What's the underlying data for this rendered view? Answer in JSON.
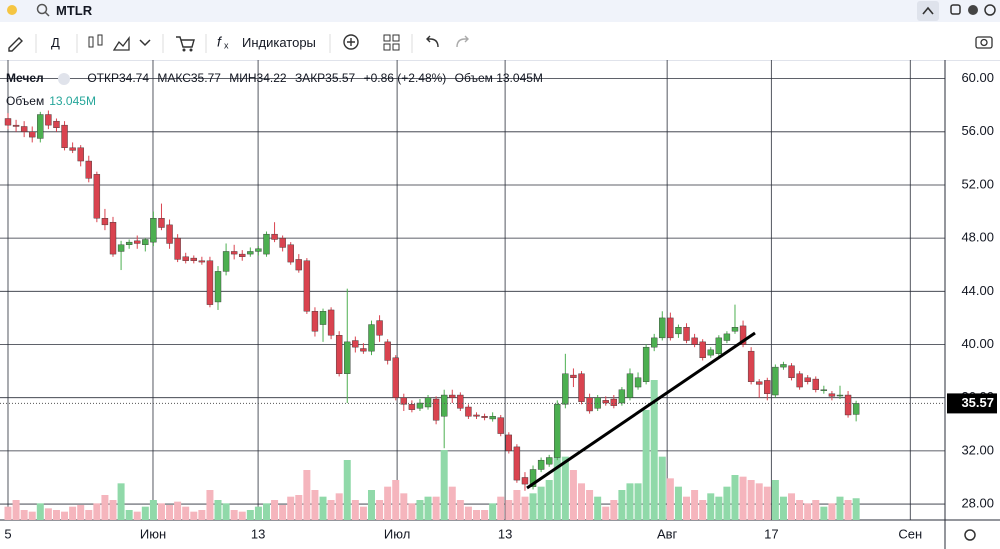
{
  "toolbar": {
    "search": "MTLR",
    "interval": "Д",
    "indicators": "Индикаторы"
  },
  "chart_data": {
    "type": "candlestick",
    "legend": {
      "symbol": "Мечел",
      "open": "ОТКР34.74",
      "high": "МАКС35.77",
      "low": "МИН34.22",
      "close": "ЗАКР35.57",
      "change": "+0.86 (+2.48%)",
      "volume": "Объем 13.045M",
      "volume_title": "Объем",
      "volume_value": "13.045M"
    },
    "up_color": "#4caf50",
    "down_color": "#d9434f",
    "up_volume_color": "#90d9a9",
    "down_volume_color": "#f5b5bd",
    "xlim": [
      -0.99,
      116.0
    ],
    "xticks": [
      {
        "value": 0,
        "label": "5"
      },
      {
        "value": 17.95,
        "label": "Июн"
      },
      {
        "value": 30.96,
        "label": "13"
      },
      {
        "value": 48.17,
        "label": "Июл"
      },
      {
        "value": 61.54,
        "label": "13"
      },
      {
        "value": 81.6,
        "label": "Авг"
      },
      {
        "value": 94.5,
        "label": "17"
      },
      {
        "value": 111.7,
        "label": "Сен"
      }
    ],
    "ylim": [
      26.8,
      61.4
    ],
    "yticks": [
      {
        "value": 28,
        "label": "28.00"
      },
      {
        "value": 32,
        "label": "32.00"
      },
      {
        "value": 36,
        "label": "36.00"
      },
      {
        "value": 40,
        "label": "40.00"
      },
      {
        "value": 44,
        "label": "44.00"
      },
      {
        "value": 48,
        "label": "48.00"
      },
      {
        "value": 52,
        "label": "52.00"
      },
      {
        "value": 56,
        "label": "56.00"
      },
      {
        "value": 60,
        "label": "60.00"
      }
    ],
    "grid": true,
    "volume_max": 90,
    "candles": [
      [
        57.0,
        57.4,
        56.2,
        56.5
      ],
      [
        56.5,
        56.9,
        56.0,
        56.4
      ],
      [
        56.4,
        56.8,
        55.6,
        56.0
      ],
      [
        56.0,
        56.4,
        55.2,
        55.6
      ],
      [
        55.5,
        57.5,
        55.2,
        57.3
      ],
      [
        57.3,
        57.6,
        56.2,
        56.5
      ],
      [
        56.8,
        57.0,
        56.0,
        56.3
      ],
      [
        56.5,
        56.8,
        54.6,
        54.8
      ],
      [
        54.8,
        55.2,
        54.4,
        54.6
      ],
      [
        54.8,
        55.0,
        53.4,
        53.8
      ],
      [
        53.8,
        54.2,
        52.2,
        52.5
      ],
      [
        52.8,
        53.0,
        49.2,
        49.5
      ],
      [
        49.5,
        50.2,
        48.6,
        49.0
      ],
      [
        49.2,
        49.6,
        46.6,
        46.8
      ],
      [
        47.0,
        47.8,
        45.6,
        47.5
      ],
      [
        47.5,
        47.9,
        47.2,
        47.7
      ],
      [
        47.8,
        48.2,
        47.2,
        47.6
      ],
      [
        47.5,
        48.0,
        47.0,
        47.9
      ],
      [
        47.7,
        50.0,
        47.4,
        49.5
      ],
      [
        49.5,
        50.6,
        48.6,
        48.8
      ],
      [
        49.0,
        49.4,
        47.2,
        47.6
      ],
      [
        48.0,
        48.3,
        46.2,
        46.4
      ],
      [
        46.6,
        46.9,
        46.1,
        46.3
      ],
      [
        46.5,
        46.7,
        46.1,
        46.3
      ],
      [
        46.3,
        46.6,
        46.0,
        46.2
      ],
      [
        46.3,
        46.6,
        42.8,
        43.0
      ],
      [
        43.2,
        45.9,
        42.6,
        45.5
      ],
      [
        45.5,
        47.6,
        45.2,
        47.0
      ],
      [
        47.0,
        47.5,
        46.4,
        46.8
      ],
      [
        46.8,
        47.1,
        46.3,
        46.6
      ],
      [
        46.8,
        47.3,
        46.6,
        47.0
      ],
      [
        47.0,
        47.4,
        46.7,
        47.2
      ],
      [
        46.8,
        48.5,
        46.6,
        48.3
      ],
      [
        48.3,
        49.2,
        47.7,
        47.9
      ],
      [
        48.0,
        48.2,
        47.0,
        47.3
      ],
      [
        47.5,
        47.7,
        46.0,
        46.2
      ],
      [
        46.4,
        46.8,
        45.4,
        45.6
      ],
      [
        46.3,
        46.5,
        42.3,
        42.5
      ],
      [
        42.5,
        42.8,
        40.6,
        41.0
      ],
      [
        41.5,
        42.7,
        40.2,
        42.5
      ],
      [
        42.6,
        42.8,
        40.4,
        40.7
      ],
      [
        40.7,
        41.0,
        37.6,
        37.8
      ],
      [
        37.8,
        44.2,
        35.6,
        40.2
      ],
      [
        40.3,
        40.6,
        39.4,
        39.8
      ],
      [
        39.7,
        40.1,
        39.3,
        39.5
      ],
      [
        39.5,
        41.8,
        39.2,
        41.5
      ],
      [
        41.8,
        42.2,
        40.2,
        40.7
      ],
      [
        40.2,
        40.4,
        38.5,
        38.8
      ],
      [
        39.0,
        39.2,
        35.8,
        36.0
      ],
      [
        36.0,
        36.3,
        35.0,
        35.5
      ],
      [
        35.5,
        35.8,
        34.9,
        35.1
      ],
      [
        35.2,
        35.9,
        35.0,
        35.6
      ],
      [
        35.3,
        36.2,
        35.1,
        36.0
      ],
      [
        35.9,
        36.1,
        34.0,
        34.3
      ],
      [
        34.6,
        36.6,
        32.2,
        36.2
      ],
      [
        36.2,
        36.6,
        35.6,
        36.0
      ],
      [
        36.2,
        36.4,
        35.0,
        35.2
      ],
      [
        35.3,
        35.5,
        34.4,
        34.6
      ],
      [
        34.7,
        34.9,
        34.4,
        34.6
      ],
      [
        34.6,
        34.8,
        34.3,
        34.5
      ],
      [
        34.4,
        34.9,
        34.2,
        34.6
      ],
      [
        34.5,
        34.7,
        33.1,
        33.3
      ],
      [
        33.2,
        33.4,
        31.8,
        32.0
      ],
      [
        32.3,
        32.5,
        29.6,
        29.8
      ],
      [
        30.0,
        30.4,
        29.0,
        29.5
      ],
      [
        29.3,
        30.9,
        29.1,
        30.6
      ],
      [
        30.6,
        31.5,
        30.4,
        31.3
      ],
      [
        31.0,
        31.7,
        30.8,
        31.5
      ],
      [
        31.5,
        35.8,
        31.3,
        35.5
      ],
      [
        35.5,
        39.3,
        35.2,
        37.8
      ],
      [
        37.7,
        38.2,
        36.8,
        37.5
      ],
      [
        37.8,
        38.0,
        35.5,
        35.7
      ],
      [
        36.0,
        36.3,
        34.8,
        35.0
      ],
      [
        35.2,
        36.2,
        35.0,
        36.0
      ],
      [
        35.8,
        36.1,
        35.4,
        35.6
      ],
      [
        35.9,
        36.2,
        35.2,
        35.4
      ],
      [
        35.6,
        36.8,
        35.4,
        36.6
      ],
      [
        36.0,
        38.2,
        35.8,
        37.8
      ],
      [
        36.8,
        37.9,
        36.6,
        37.5
      ],
      [
        37.2,
        40.0,
        37.0,
        39.8
      ],
      [
        39.8,
        40.8,
        39.5,
        40.5
      ],
      [
        40.5,
        42.5,
        40.3,
        42.0
      ],
      [
        42.0,
        42.4,
        40.3,
        40.5
      ],
      [
        40.8,
        41.5,
        40.5,
        41.3
      ],
      [
        41.3,
        41.6,
        40.1,
        40.3
      ],
      [
        40.5,
        40.8,
        39.8,
        40.0
      ],
      [
        40.2,
        40.4,
        38.8,
        39.0
      ],
      [
        39.2,
        39.8,
        39.0,
        39.6
      ],
      [
        39.3,
        40.7,
        39.1,
        40.5
      ],
      [
        40.3,
        41.0,
        40.1,
        40.8
      ],
      [
        41.0,
        43.0,
        40.8,
        41.3
      ],
      [
        41.4,
        41.8,
        39.8,
        40.0
      ],
      [
        39.5,
        39.8,
        37.0,
        37.2
      ],
      [
        37.2,
        37.4,
        36.0,
        37.0
      ],
      [
        37.3,
        37.5,
        35.8,
        36.3
      ],
      [
        36.2,
        38.5,
        36.0,
        38.3
      ],
      [
        38.3,
        38.7,
        38.1,
        38.5
      ],
      [
        38.4,
        38.6,
        37.3,
        37.5
      ],
      [
        37.8,
        38.0,
        36.6,
        36.8
      ],
      [
        37.5,
        37.7,
        37.0,
        37.2
      ],
      [
        37.4,
        37.6,
        36.4,
        36.6
      ],
      [
        36.6,
        36.9,
        36.3,
        36.6
      ],
      [
        36.3,
        36.5,
        35.8,
        36.1
      ],
      [
        36.2,
        36.9,
        35.9,
        36.2
      ],
      [
        36.2,
        36.5,
        34.5,
        34.7
      ],
      [
        34.74,
        35.77,
        34.22,
        35.57
      ]
    ],
    "volume": [
      8,
      12,
      6,
      5,
      10,
      7,
      6,
      5,
      8,
      9,
      6,
      10,
      15,
      12,
      22,
      6,
      5,
      8,
      12,
      10,
      9,
      11,
      8,
      5,
      6,
      18,
      12,
      10,
      6,
      5,
      6,
      8,
      10,
      12,
      9,
      14,
      15,
      30,
      18,
      14,
      12,
      16,
      36,
      12,
      8,
      18,
      12,
      20,
      24,
      16,
      10,
      12,
      14,
      14,
      42,
      20,
      12,
      8,
      6,
      6,
      10,
      14,
      12,
      18,
      14,
      16,
      20,
      24,
      42,
      38,
      30,
      22,
      18,
      14,
      8,
      12,
      18,
      22,
      22,
      66,
      84,
      38,
      25,
      20,
      14,
      18,
      12,
      16,
      14,
      20,
      27,
      26,
      24,
      22,
      20,
      24,
      14,
      16,
      12,
      10,
      12,
      8,
      10,
      14,
      12,
      13.045
    ]
  }
}
